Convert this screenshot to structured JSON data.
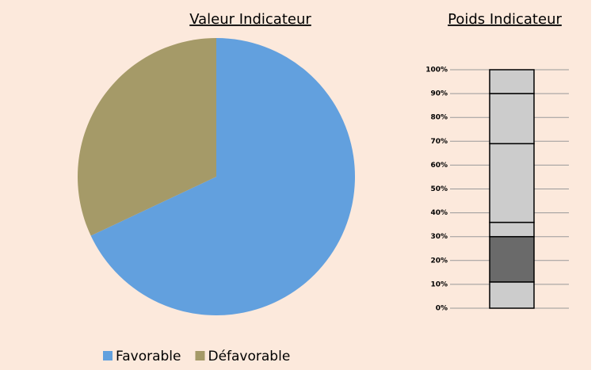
{
  "chart_data": [
    {
      "type": "pie",
      "title": "Valeur Indicateur",
      "categories": [
        "Favorable",
        "Défavorable"
      ],
      "values": [
        68,
        32
      ],
      "colors": [
        "#62a0de",
        "#a59a68"
      ],
      "legend": "bottom"
    },
    {
      "type": "stacked_bar",
      "title": "Poids Indicateur",
      "values": [
        11,
        19,
        6,
        33,
        21,
        10
      ],
      "colors": [
        "#cccccc",
        "#6a6a6a",
        "#cccccc",
        "#cccccc",
        "#cccccc",
        "#cccccc"
      ],
      "ylim": [
        0,
        100
      ],
      "yticks": [
        {
          "value": 0,
          "label": "0%"
        },
        {
          "value": 10,
          "label": "10%"
        },
        {
          "value": 20,
          "label": "20%"
        },
        {
          "value": 30,
          "label": "30%"
        },
        {
          "value": 40,
          "label": "40%"
        },
        {
          "value": 50,
          "label": "50%"
        },
        {
          "value": 60,
          "label": "60%"
        },
        {
          "value": 70,
          "label": "70%"
        },
        {
          "value": 80,
          "label": "80%"
        },
        {
          "value": 90,
          "label": "90%"
        },
        {
          "value": 100,
          "label": "100%"
        }
      ],
      "grid": true
    }
  ]
}
